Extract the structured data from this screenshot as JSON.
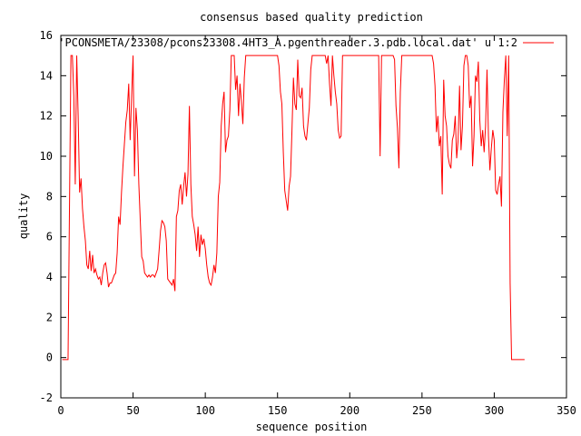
{
  "chart_data": {
    "type": "line",
    "title": "consensus based quality prediction",
    "xlabel": "sequence position",
    "ylabel": "quality",
    "xlim": [
      0,
      350
    ],
    "ylim": [
      -2,
      16
    ],
    "xticks": [
      0,
      50,
      100,
      150,
      200,
      250,
      300,
      350
    ],
    "yticks": [
      -2,
      0,
      2,
      4,
      6,
      8,
      10,
      12,
      14,
      16
    ],
    "grid": false,
    "legend_position": "top-right",
    "series": [
      {
        "name": "'PCONSMETA/23308/pcons23308.4HT3_A.pgenthreader.3.pdb.local.dat' u 1:2",
        "color": "#ff0000",
        "points": [
          [
            1,
            -0.1
          ],
          [
            2,
            -0.1
          ],
          [
            3,
            -0.1
          ],
          [
            4,
            -0.1
          ],
          [
            5,
            -0.1
          ],
          [
            6,
            7.5
          ],
          [
            7,
            15
          ],
          [
            8,
            15
          ],
          [
            9,
            13
          ],
          [
            10,
            8.6
          ],
          [
            11,
            15
          ],
          [
            12,
            12
          ],
          [
            13,
            8.2
          ],
          [
            14,
            8.9
          ],
          [
            15,
            7.4
          ],
          [
            16,
            6.5
          ],
          [
            17,
            5.8
          ],
          [
            18,
            4.6
          ],
          [
            19,
            4.4
          ],
          [
            20,
            5.3
          ],
          [
            21,
            4.3
          ],
          [
            22,
            5.1
          ],
          [
            23,
            4.2
          ],
          [
            24,
            4.4
          ],
          [
            25,
            4.1
          ],
          [
            26,
            3.9
          ],
          [
            27,
            4.0
          ],
          [
            28,
            3.6
          ],
          [
            29,
            4.2
          ],
          [
            30,
            4.6
          ],
          [
            31,
            4.7
          ],
          [
            32,
            4.2
          ],
          [
            33,
            3.5
          ],
          [
            34,
            3.7
          ],
          [
            35,
            3.7
          ],
          [
            36,
            3.9
          ],
          [
            37,
            4.1
          ],
          [
            38,
            4.2
          ],
          [
            39,
            5.2
          ],
          [
            40,
            7.0
          ],
          [
            41,
            6.6
          ],
          [
            42,
            8.2
          ],
          [
            43,
            9.5
          ],
          [
            44,
            10.6
          ],
          [
            45,
            11.7
          ],
          [
            46,
            12.3
          ],
          [
            47,
            13.6
          ],
          [
            48,
            10.8
          ],
          [
            49,
            13.0
          ],
          [
            50,
            15
          ],
          [
            51,
            9.0
          ],
          [
            52,
            12.4
          ],
          [
            53,
            11.3
          ],
          [
            54,
            8.6
          ],
          [
            55,
            6.8
          ],
          [
            56,
            5.0
          ],
          [
            57,
            4.8
          ],
          [
            58,
            4.2
          ],
          [
            59,
            4.1
          ],
          [
            60,
            4.0
          ],
          [
            61,
            4.1
          ],
          [
            62,
            4.0
          ],
          [
            63,
            4.1
          ],
          [
            64,
            4.1
          ],
          [
            65,
            4.0
          ],
          [
            66,
            4.2
          ],
          [
            67,
            4.4
          ],
          [
            68,
            5.3
          ],
          [
            69,
            6.3
          ],
          [
            70,
            6.8
          ],
          [
            71,
            6.7
          ],
          [
            72,
            6.5
          ],
          [
            73,
            5.8
          ],
          [
            74,
            3.9
          ],
          [
            75,
            3.8
          ],
          [
            76,
            3.7
          ],
          [
            77,
            3.6
          ],
          [
            78,
            3.9
          ],
          [
            79,
            3.3
          ],
          [
            80,
            7.0
          ],
          [
            81,
            7.3
          ],
          [
            82,
            8.3
          ],
          [
            83,
            8.6
          ],
          [
            84,
            7.6
          ],
          [
            85,
            8.5
          ],
          [
            86,
            9.2
          ],
          [
            87,
            8.0
          ],
          [
            88,
            9.1
          ],
          [
            89,
            12.5
          ],
          [
            90,
            8.6
          ],
          [
            91,
            7.0
          ],
          [
            92,
            6.6
          ],
          [
            93,
            6.1
          ],
          [
            94,
            5.3
          ],
          [
            95,
            6.5
          ],
          [
            96,
            5.0
          ],
          [
            97,
            6.1
          ],
          [
            98,
            5.6
          ],
          [
            99,
            5.9
          ],
          [
            100,
            5.4
          ],
          [
            101,
            4.6
          ],
          [
            102,
            4.0
          ],
          [
            103,
            3.7
          ],
          [
            104,
            3.6
          ],
          [
            105,
            4.0
          ],
          [
            106,
            4.6
          ],
          [
            107,
            4.2
          ],
          [
            108,
            5.2
          ],
          [
            109,
            8.0
          ],
          [
            110,
            8.7
          ],
          [
            111,
            11.5
          ],
          [
            112,
            12.6
          ],
          [
            113,
            13.2
          ],
          [
            114,
            10.2
          ],
          [
            115,
            10.8
          ],
          [
            116,
            11.0
          ],
          [
            117,
            12.3
          ],
          [
            118,
            15
          ],
          [
            119,
            15
          ],
          [
            120,
            15
          ],
          [
            121,
            13.3
          ],
          [
            122,
            14.0
          ],
          [
            123,
            12.0
          ],
          [
            124,
            13.6
          ],
          [
            125,
            12.7
          ],
          [
            126,
            11.6
          ],
          [
            127,
            13.9
          ],
          [
            128,
            15
          ],
          [
            129,
            15
          ],
          [
            130,
            15
          ],
          [
            131,
            15
          ],
          [
            132,
            15
          ],
          [
            133,
            15
          ],
          [
            134,
            15
          ],
          [
            135,
            15
          ],
          [
            136,
            15
          ],
          [
            137,
            15
          ],
          [
            138,
            15
          ],
          [
            139,
            15
          ],
          [
            140,
            15
          ],
          [
            141,
            15
          ],
          [
            142,
            15
          ],
          [
            143,
            15
          ],
          [
            144,
            15
          ],
          [
            145,
            15
          ],
          [
            146,
            15
          ],
          [
            147,
            15
          ],
          [
            148,
            15
          ],
          [
            149,
            15
          ],
          [
            150,
            15
          ],
          [
            151,
            14.5
          ],
          [
            152,
            13.2
          ],
          [
            153,
            12.6
          ],
          [
            154,
            10.2
          ],
          [
            155,
            8.3
          ],
          [
            156,
            7.8
          ],
          [
            157,
            7.3
          ],
          [
            158,
            8.5
          ],
          [
            159,
            9.0
          ],
          [
            160,
            11.3
          ],
          [
            161,
            13.9
          ],
          [
            162,
            12.6
          ],
          [
            163,
            12.3
          ],
          [
            164,
            14.8
          ],
          [
            165,
            13.0
          ],
          [
            166,
            12.9
          ],
          [
            167,
            13.4
          ],
          [
            168,
            11.5
          ],
          [
            169,
            11.0
          ],
          [
            170,
            10.8
          ],
          [
            171,
            11.6
          ],
          [
            172,
            12.4
          ],
          [
            173,
            14.3
          ],
          [
            174,
            15
          ],
          [
            175,
            15
          ],
          [
            176,
            15
          ],
          [
            177,
            15
          ],
          [
            178,
            15
          ],
          [
            179,
            15
          ],
          [
            180,
            15
          ],
          [
            181,
            15
          ],
          [
            182,
            15
          ],
          [
            183,
            15
          ],
          [
            184,
            14.6
          ],
          [
            185,
            15
          ],
          [
            186,
            13.6
          ],
          [
            187,
            12.5
          ],
          [
            188,
            15
          ],
          [
            189,
            14.0
          ],
          [
            190,
            13.2
          ],
          [
            191,
            12.6
          ],
          [
            192,
            11.3
          ],
          [
            193,
            10.9
          ],
          [
            194,
            11.0
          ],
          [
            195,
            15
          ],
          [
            196,
            15
          ],
          [
            197,
            15
          ],
          [
            198,
            15
          ],
          [
            199,
            15
          ],
          [
            200,
            15
          ],
          [
            201,
            15
          ],
          [
            202,
            15
          ],
          [
            203,
            15
          ],
          [
            204,
            15
          ],
          [
            205,
            15
          ],
          [
            206,
            15
          ],
          [
            207,
            15
          ],
          [
            208,
            15
          ],
          [
            209,
            15
          ],
          [
            210,
            15
          ],
          [
            211,
            15
          ],
          [
            212,
            15
          ],
          [
            213,
            15
          ],
          [
            214,
            15
          ],
          [
            215,
            15
          ],
          [
            216,
            15
          ],
          [
            217,
            15
          ],
          [
            218,
            15
          ],
          [
            219,
            15
          ],
          [
            220,
            15
          ],
          [
            221,
            10.0
          ],
          [
            222,
            15
          ],
          [
            223,
            15
          ],
          [
            224,
            15
          ],
          [
            225,
            15
          ],
          [
            226,
            15
          ],
          [
            227,
            15
          ],
          [
            228,
            15
          ],
          [
            229,
            15
          ],
          [
            230,
            15
          ],
          [
            231,
            14.8
          ],
          [
            232,
            12.5
          ],
          [
            233,
            11.4
          ],
          [
            234,
            9.4
          ],
          [
            235,
            13.2
          ],
          [
            236,
            15
          ],
          [
            237,
            15
          ],
          [
            238,
            15
          ],
          [
            239,
            15
          ],
          [
            240,
            15
          ],
          [
            241,
            15
          ],
          [
            242,
            15
          ],
          [
            243,
            15
          ],
          [
            244,
            15
          ],
          [
            245,
            15
          ],
          [
            246,
            15
          ],
          [
            247,
            15
          ],
          [
            248,
            15
          ],
          [
            249,
            15
          ],
          [
            250,
            15
          ],
          [
            251,
            15
          ],
          [
            252,
            15
          ],
          [
            253,
            15
          ],
          [
            254,
            15
          ],
          [
            255,
            15
          ],
          [
            256,
            15
          ],
          [
            257,
            15
          ],
          [
            258,
            14.6
          ],
          [
            259,
            13.5
          ],
          [
            260,
            11.2
          ],
          [
            261,
            12.0
          ],
          [
            262,
            10.5
          ],
          [
            263,
            11.0
          ],
          [
            264,
            8.1
          ],
          [
            265,
            13.8
          ],
          [
            266,
            12.0
          ],
          [
            267,
            11.5
          ],
          [
            268,
            10.0
          ],
          [
            269,
            9.6
          ],
          [
            270,
            9.4
          ],
          [
            271,
            10.8
          ],
          [
            272,
            11.1
          ],
          [
            273,
            12.0
          ],
          [
            274,
            9.9
          ],
          [
            275,
            10.8
          ],
          [
            276,
            13.5
          ],
          [
            277,
            10.3
          ],
          [
            278,
            11.5
          ],
          [
            279,
            14.5
          ],
          [
            280,
            15
          ],
          [
            281,
            15
          ],
          [
            282,
            14.5
          ],
          [
            283,
            12.4
          ],
          [
            284,
            13.0
          ],
          [
            285,
            9.5
          ],
          [
            286,
            11.0
          ],
          [
            287,
            14.0
          ],
          [
            288,
            13.7
          ],
          [
            289,
            14.7
          ],
          [
            290,
            11.8
          ],
          [
            291,
            10.5
          ],
          [
            292,
            11.3
          ],
          [
            293,
            10.2
          ],
          [
            294,
            11.5
          ],
          [
            295,
            14.3
          ],
          [
            296,
            11.0
          ],
          [
            297,
            9.3
          ],
          [
            298,
            10.4
          ],
          [
            299,
            11.3
          ],
          [
            300,
            10.8
          ],
          [
            301,
            8.3
          ],
          [
            302,
            8.1
          ],
          [
            303,
            8.6
          ],
          [
            304,
            9.0
          ],
          [
            305,
            7.5
          ],
          [
            306,
            12.2
          ],
          [
            307,
            13.8
          ],
          [
            308,
            15
          ],
          [
            309,
            11.0
          ],
          [
            310,
            15
          ],
          [
            311,
            3.7
          ],
          [
            312,
            -0.1
          ],
          [
            313,
            -0.1
          ],
          [
            314,
            -0.1
          ],
          [
            315,
            -0.1
          ],
          [
            316,
            -0.1
          ],
          [
            317,
            -0.1
          ],
          [
            318,
            -0.1
          ],
          [
            319,
            -0.1
          ],
          [
            320,
            -0.1
          ],
          [
            321,
            -0.1
          ]
        ]
      }
    ]
  }
}
